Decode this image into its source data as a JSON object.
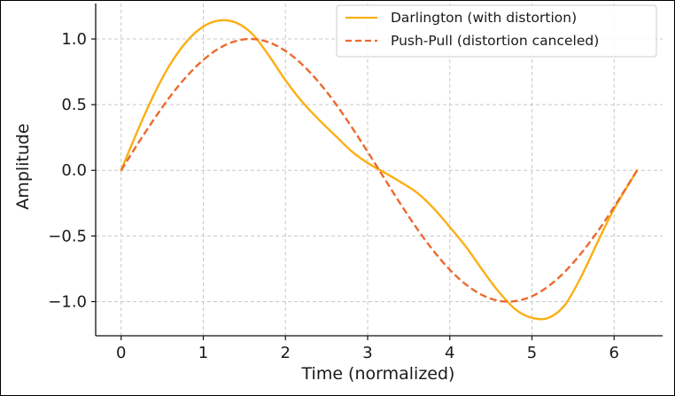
{
  "chart_data": {
    "type": "line",
    "title": "",
    "xlabel": "Time (normalized)",
    "ylabel": "Amplitude",
    "xlim": [
      -0.31,
      6.59
    ],
    "ylim": [
      -1.26,
      1.27
    ],
    "xticks": [
      0,
      1,
      2,
      3,
      4,
      5,
      6
    ],
    "xtick_labels": [
      "0",
      "1",
      "2",
      "3",
      "4",
      "5",
      "6"
    ],
    "yticks": [
      -1.0,
      -0.5,
      0.0,
      0.5,
      1.0
    ],
    "ytick_labels": [
      "−1.0",
      "−0.5",
      "0.0",
      "0.5",
      "1.0"
    ],
    "grid": true,
    "legend_position": "top-right",
    "series": [
      {
        "name": "Darlington (with distortion)",
        "color": "#fbaf14",
        "style": "solid",
        "x": [
          0,
          0.2,
          0.4,
          0.6,
          0.8,
          1.0,
          1.2,
          1.4,
          1.6,
          1.8,
          2.0,
          2.2,
          2.4,
          2.6,
          2.8,
          3.0,
          3.2,
          3.4,
          3.6,
          3.8,
          4.0,
          4.2,
          4.4,
          4.6,
          4.8,
          5.0,
          5.2,
          5.4,
          5.6,
          5.8,
          6.0,
          6.28
        ],
        "values": [
          0,
          0.301,
          0.578,
          0.81,
          0.983,
          1.095,
          1.141,
          1.124,
          1.036,
          0.872,
          0.686,
          0.524,
          0.39,
          0.268,
          0.148,
          0.056,
          -0.015,
          -0.089,
          -0.17,
          -0.287,
          -0.432,
          -0.585,
          -0.762,
          -0.928,
          -1.06,
          -1.124,
          -1.124,
          -1.026,
          -0.809,
          -0.546,
          -0.294,
          0.0
        ]
      },
      {
        "name": "Push-Pull (distortion canceled)",
        "color": "#eb6a2e",
        "style": "dashed",
        "x": [
          0,
          0.2,
          0.4,
          0.6,
          0.8,
          1.0,
          1.2,
          1.4,
          1.6,
          1.8,
          2.0,
          2.2,
          2.4,
          2.6,
          2.8,
          3.0,
          3.2,
          3.4,
          3.6,
          3.8,
          4.0,
          4.2,
          4.4,
          4.6,
          4.8,
          5.0,
          5.2,
          5.4,
          5.6,
          5.8,
          6.0,
          6.28
        ],
        "values": [
          0,
          0.199,
          0.389,
          0.565,
          0.717,
          0.841,
          0.932,
          0.985,
          1.0,
          0.974,
          0.909,
          0.808,
          0.675,
          0.516,
          0.335,
          0.141,
          -0.058,
          -0.256,
          -0.443,
          -0.612,
          -0.757,
          -0.872,
          -0.952,
          -0.994,
          -0.996,
          -0.959,
          -0.883,
          -0.773,
          -0.631,
          -0.465,
          -0.279,
          0.0
        ]
      }
    ]
  }
}
